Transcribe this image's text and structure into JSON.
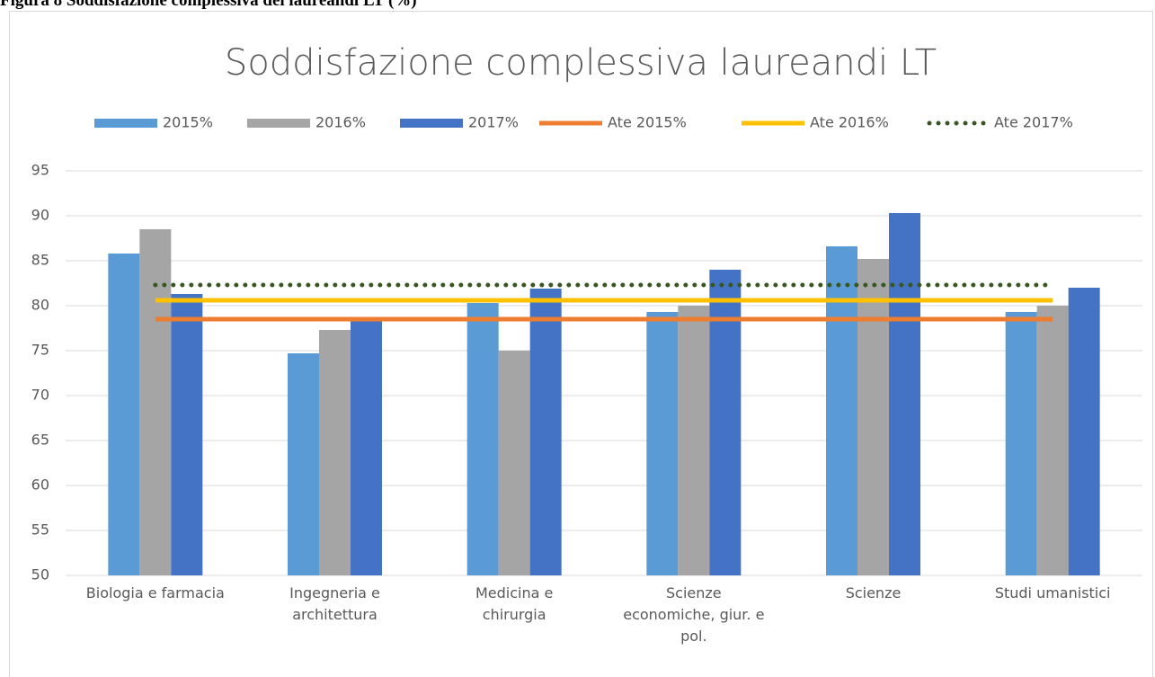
{
  "caption": "Figura 8 Soddisfazione complessiva dei laureandi LT (%)",
  "chart_data": {
    "type": "bar",
    "title": "Soddisfazione complessiva laureandi LT",
    "categories": [
      "Biologia e farmacia",
      "Ingegneria e architettura",
      "Medicina e chirurgia",
      "Scienze economiche, giur. e pol.",
      "Scienze",
      "Studi umanistici"
    ],
    "series": [
      {
        "name": "2015%",
        "type": "bar",
        "color": "#5b9bd5",
        "values": [
          85.8,
          74.7,
          80.3,
          79.3,
          86.6,
          79.3
        ]
      },
      {
        "name": "2016%",
        "type": "bar",
        "color": "#a5a5a5",
        "values": [
          88.5,
          77.3,
          75.0,
          80.0,
          85.2,
          80.0
        ]
      },
      {
        "name": "2017%",
        "type": "bar",
        "color": "#4472c4",
        "values": [
          81.3,
          78.4,
          81.9,
          84.0,
          90.3,
          82.0
        ]
      },
      {
        "name": "Ate 2015%",
        "type": "line",
        "color": "#ed7d31",
        "values": [
          78.5,
          78.5,
          78.5,
          78.5,
          78.5,
          78.5
        ]
      },
      {
        "name": "Ate 2016%",
        "type": "line",
        "color": "#ffc000",
        "values": [
          80.6,
          80.6,
          80.6,
          80.6,
          80.6,
          80.6
        ]
      },
      {
        "name": "Ate 2017%",
        "type": "line",
        "color": "#375623",
        "dotted": true,
        "values": [
          82.3,
          82.3,
          82.3,
          82.3,
          82.3,
          82.3
        ]
      }
    ],
    "ylim": [
      50,
      95
    ],
    "yticks": [
      50,
      55,
      60,
      65,
      70,
      75,
      80,
      85,
      90,
      95
    ],
    "grid": true,
    "legend": "top"
  }
}
